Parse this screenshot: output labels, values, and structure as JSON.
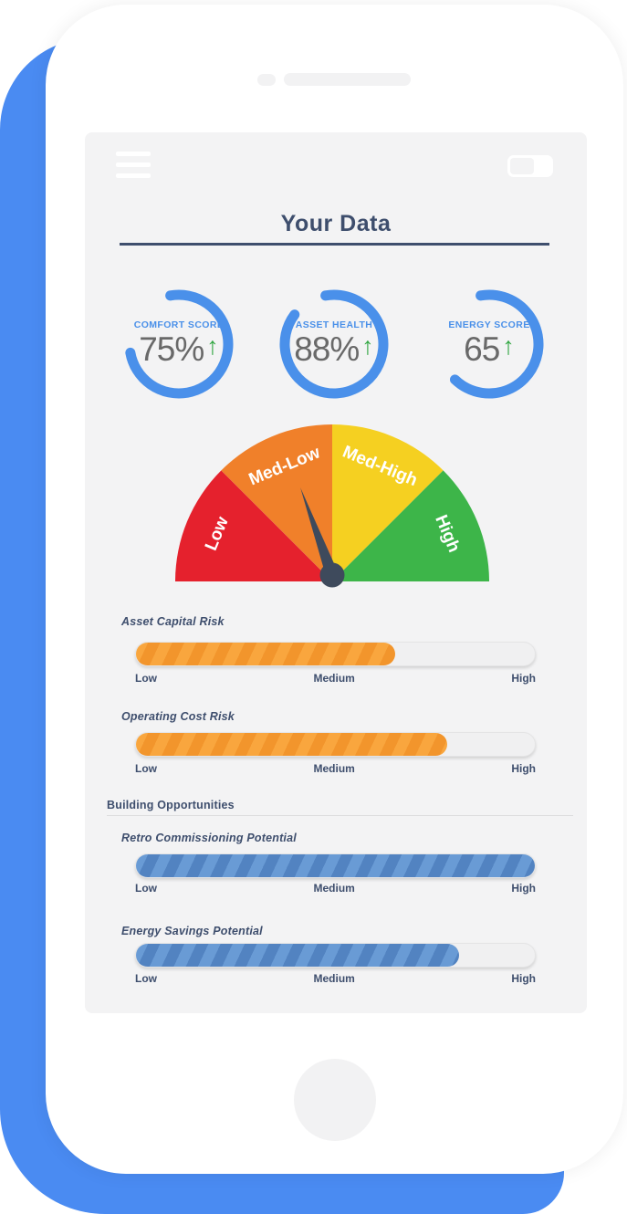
{
  "header": {
    "title": "Your Data"
  },
  "gauges": [
    {
      "label": "COMFORT SCORE",
      "value": "75%",
      "percent": 75,
      "arrow": "↑",
      "trend": "up"
    },
    {
      "label": "ASSET HEALTH",
      "value": "88%",
      "percent": 88,
      "arrow": "↑",
      "trend": "up"
    },
    {
      "label": "ENERGY SCORE",
      "value": "65",
      "percent": 65,
      "arrow": "↑",
      "trend": "up"
    }
  ],
  "speedometer": {
    "segments": [
      {
        "label": "Low",
        "color": "#e5212d",
        "from": 180,
        "to": 135
      },
      {
        "label": "Med-Low",
        "color": "#f0802a",
        "from": 135,
        "to": 90
      },
      {
        "label": "Med-High",
        "color": "#f5d021",
        "from": 90,
        "to": 45
      },
      {
        "label": "High",
        "color": "#3db549",
        "from": 45,
        "to": 0
      }
    ],
    "needle_angle_deg": 110,
    "needle_color": "#3e4a5c"
  },
  "risk_section": {
    "bars": [
      {
        "label": "Asset Capital Risk",
        "percent": 65
      },
      {
        "label": "Operating Cost Risk",
        "percent": 78
      }
    ]
  },
  "opportunity_section": {
    "title": "Building Opportunities",
    "bars": [
      {
        "label": "Retro Commissioning Potential",
        "percent": 100
      },
      {
        "label": "Energy Savings Potential",
        "percent": 81
      }
    ]
  },
  "scale": {
    "low": "Low",
    "medium": "Medium",
    "high": "High"
  },
  "colors": {
    "phone_backdrop_blue": "#4a8bf2",
    "ring_blue": "#4a90ea",
    "label_blue": "#4a90e9",
    "navy": "#3e4e6d",
    "value_gray": "#696969",
    "trend_green": "#35a845",
    "bar_orange_light": "#f9a63e",
    "bar_orange_dark": "#f2952c",
    "bar_blue_light": "#699bd5",
    "bar_blue_dark": "#5283c1"
  }
}
